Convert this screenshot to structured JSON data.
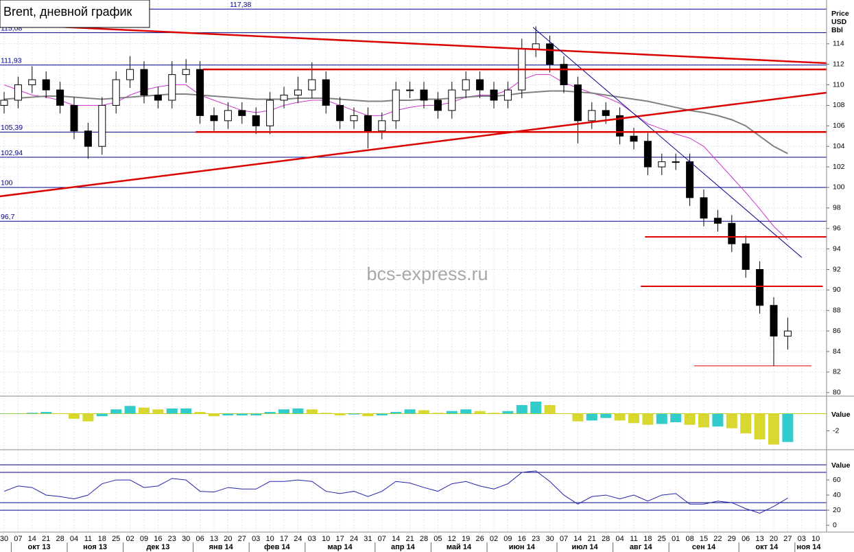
{
  "chart_data": {
    "type": "candlestick",
    "title": "Brent, дневной график",
    "watermark": "bcs-express.ru",
    "y_axis_title": [
      "Price",
      "USD",
      "Bbl"
    ],
    "x_tick_labels": [
      "30",
      "07",
      "14",
      "21",
      "28",
      "04",
      "11",
      "18",
      "25",
      "02",
      "09",
      "16",
      "23",
      "30",
      "06",
      "13",
      "20",
      "27",
      "03",
      "10",
      "17",
      "24",
      "03",
      "10",
      "17",
      "24",
      "31",
      "07",
      "14",
      "21",
      "28",
      "05",
      "12",
      "19",
      "26",
      "02",
      "09",
      "16",
      "23",
      "30",
      "07",
      "14",
      "21",
      "28",
      "04",
      "11",
      "18",
      "25",
      "01",
      "08",
      "15",
      "22",
      "29",
      "06",
      "13",
      "20",
      "27",
      "03",
      "10"
    ],
    "month_labels": [
      "окт 13",
      "ноя 13",
      "дек 13",
      "янв 14",
      "фев 14",
      "мар 14",
      "апр 14",
      "май 14",
      "июн 14",
      "июл 14",
      "авг 14",
      "сен 14",
      "окт 14",
      "ноя 14"
    ],
    "ylim": [
      79.65,
      118.27
    ],
    "yticks": [
      80,
      82,
      84,
      86,
      88,
      90,
      92,
      94,
      96,
      98,
      100,
      102,
      104,
      106,
      108,
      110,
      112,
      114
    ],
    "grid": true,
    "candles": {
      "open": [
        108,
        108.5,
        110,
        110.5,
        109.5,
        108,
        105.5,
        104,
        108,
        110.5,
        111.5,
        109,
        108.5,
        111,
        111.5,
        107,
        106.5,
        107.5,
        107,
        106,
        108.5,
        109,
        109.5,
        110.5,
        108,
        106.5,
        107,
        105.5,
        106.5,
        109.5,
        109.5,
        108.5,
        107.5,
        109.5,
        110.5,
        109.5,
        108.5,
        109.5,
        113.5,
        114,
        112,
        110,
        106.5,
        107.5,
        107,
        105,
        104.5,
        102,
        102.5,
        102.5,
        99,
        97,
        96.5,
        94.5,
        92,
        88.5,
        85.5
      ],
      "high": [
        109.3,
        110.8,
        111.8,
        111.3,
        110.3,
        108.8,
        106.3,
        108.8,
        111.3,
        112.8,
        112.3,
        109.8,
        112.3,
        112.5,
        112.3,
        107.8,
        108.3,
        108.3,
        107.8,
        109.3,
        109.8,
        110.8,
        112.2,
        111.3,
        108.8,
        107.8,
        107.8,
        107.3,
        110.3,
        110.3,
        110.3,
        109.3,
        110.3,
        111.3,
        111.3,
        110.3,
        110.3,
        114.5,
        115.7,
        114.8,
        112.8,
        110.8,
        108.3,
        108.3,
        107.8,
        105.8,
        105.3,
        103.3,
        103.3,
        103.3,
        99.8,
        97.8,
        97.3,
        95.3,
        92.8,
        89.3,
        87.3
      ],
      "low": [
        107.2,
        107.7,
        109.2,
        108.7,
        107.2,
        104.7,
        102.8,
        103.2,
        107.2,
        109.7,
        108.2,
        107.7,
        107.7,
        110.2,
        106.2,
        105.5,
        105.7,
        106.2,
        105.2,
        105.2,
        107.7,
        108.2,
        108.7,
        107.2,
        105.7,
        105.7,
        103.8,
        104.7,
        105.7,
        108.7,
        107.7,
        106.7,
        106.7,
        108.7,
        108.7,
        107.7,
        107.7,
        108.7,
        112.7,
        111.2,
        109.2,
        104.3,
        105.7,
        106.2,
        104.2,
        103.7,
        101.2,
        101.2,
        101.7,
        98.2,
        96.2,
        95.7,
        93.7,
        91.2,
        87.7,
        82.6,
        84.2
      ],
      "close": [
        108.5,
        110,
        110.5,
        109.5,
        108,
        105.5,
        104,
        108,
        110.5,
        111.5,
        109,
        108.5,
        111,
        111.5,
        107,
        106.5,
        107.5,
        107,
        106,
        108.5,
        109,
        109.5,
        110.5,
        108,
        106.5,
        107,
        105.5,
        106.5,
        109.5,
        109.5,
        108.5,
        107.5,
        109.5,
        110.5,
        109.5,
        108.5,
        109.5,
        113.5,
        114,
        112,
        110,
        106.5,
        107.5,
        107,
        105,
        104.5,
        102,
        102.5,
        102.5,
        99,
        97,
        96.5,
        94.5,
        92,
        88.5,
        85.5,
        86
      ]
    },
    "moving_averages": [
      {
        "color": "#cc33cc",
        "values": [
          110,
          109.5,
          109,
          108.8,
          108.5,
          108,
          108,
          108,
          108.3,
          109,
          109.5,
          109.8,
          110,
          110,
          109,
          108.5,
          108,
          107.5,
          107.3,
          107.5,
          108,
          108.3,
          108.5,
          108.5,
          108,
          107.5,
          107,
          107,
          107.5,
          107.8,
          108,
          108,
          108.3,
          108.8,
          109,
          109,
          109.5,
          110.5,
          111,
          111,
          110.2,
          109.7,
          109.2,
          108.8,
          108.2,
          107.2,
          106.2,
          105.7,
          105.2,
          104.8,
          104,
          102.5,
          101,
          99.5,
          97.9,
          96.2,
          94.9
        ]
      },
      {
        "color": "#808080",
        "values": [
          108.6,
          108.7,
          108.8,
          108.9,
          108.9,
          108.8,
          108.7,
          108.6,
          108.7,
          108.8,
          108.9,
          109,
          109.1,
          109.1,
          109,
          108.9,
          108.8,
          108.7,
          108.6,
          108.6,
          108.6,
          108.7,
          108.7,
          108.7,
          108.6,
          108.5,
          108.4,
          108.4,
          108.5,
          108.5,
          108.6,
          108.6,
          108.7,
          108.8,
          108.9,
          108.9,
          109,
          109.2,
          109.3,
          109.4,
          109.4,
          109.3,
          109.2,
          109,
          108.8,
          108.6,
          108.4,
          108.1,
          107.8,
          107.5,
          107.3,
          107,
          106.6,
          106,
          105,
          104,
          103.3
        ]
      }
    ],
    "levels": [
      {
        "value": 117.38,
        "label": "117,38"
      },
      {
        "value": 115.08,
        "label": "115,08"
      },
      {
        "value": 111.93,
        "label": "111,93"
      },
      {
        "value": 105.39,
        "label": "105,39"
      },
      {
        "value": 102.94,
        "label": "102,94"
      },
      100,
      {
        "value": 96.7,
        "label": "96,7"
      }
    ],
    "level_color": "#000088",
    "trend_lines": [
      {
        "x": [
          -0.3,
          58.8
        ],
        "y": [
          115.93,
          112.11
        ],
        "color": "#dd0000",
        "width": 2.5
      },
      {
        "x": [
          -0.3,
          58.8
        ],
        "y": [
          99.13,
          109.24
        ],
        "color": "#dd0000",
        "width": 2.5
      },
      {
        "x": [
          37.8,
          57
        ],
        "y": [
          115.6,
          93.17
        ],
        "color": "#000088",
        "width": 1
      },
      {
        "x": [
          14.2,
          58.8
        ],
        "y": [
          111.5,
          111.5
        ],
        "color": "#dd0000",
        "width": 2.5
      },
      {
        "x": [
          13.7,
          58.8
        ],
        "y": [
          105.4,
          105.4
        ],
        "color": "#dd0000",
        "width": 2.5
      },
      {
        "x": [
          45.8,
          58.8
        ],
        "y": [
          95.18,
          95.18
        ],
        "color": "#dd0000",
        "width": 2
      },
      {
        "x": [
          45.5,
          58.5
        ],
        "y": [
          90.36,
          90.36
        ],
        "color": "#dd0000",
        "width": 2
      },
      {
        "x": [
          49.3,
          57.7
        ],
        "y": [
          82.6,
          82.6
        ],
        "color": "#dd0000",
        "width": 1
      }
    ],
    "oscillator": {
      "type": "bar",
      "y_axis_title": "Value",
      "ylim": [
        -4.2,
        1.8
      ],
      "yticks": [
        -2
      ],
      "up_color": "#33cccc",
      "down_color": "#d8d830",
      "values": [
        0,
        0,
        0.1,
        0.2,
        0,
        -0.6,
        -0.9,
        -0.3,
        0.5,
        0.9,
        0.7,
        0.5,
        0.6,
        0.6,
        0.2,
        -0.3,
        -0.2,
        -0.2,
        -0.2,
        0.2,
        0.5,
        0.6,
        0.5,
        0.1,
        -0.2,
        -0.1,
        -0.3,
        -0.2,
        0.2,
        0.5,
        0.4,
        0.1,
        0.3,
        0.5,
        0.3,
        0.1,
        0.3,
        1,
        1.4,
        1,
        0,
        -0.9,
        -0.8,
        -0.5,
        -0.8,
        -1.1,
        -1.3,
        -1.2,
        -1,
        -1.3,
        -1.6,
        -1.5,
        -1.7,
        -2.3,
        -3,
        -3.6,
        -3.3
      ]
    },
    "rsi": {
      "type": "line",
      "y_axis_title": "Value",
      "ylim": [
        -9,
        95.5
      ],
      "yticks": [
        0,
        20,
        40,
        60
      ],
      "levels": [
        80,
        70,
        30,
        20
      ],
      "color": "#2222aa",
      "values": [
        45,
        52,
        50,
        40,
        38,
        35,
        40,
        55,
        60,
        60,
        50,
        52,
        62,
        60,
        45,
        44,
        50,
        48,
        48,
        58,
        58,
        60,
        58,
        45,
        42,
        45,
        38,
        45,
        58,
        56,
        50,
        45,
        55,
        58,
        52,
        48,
        55,
        70,
        72,
        58,
        40,
        28,
        38,
        40,
        35,
        40,
        32,
        40,
        42,
        28,
        28,
        32,
        30,
        22,
        16,
        25,
        36
      ]
    }
  }
}
